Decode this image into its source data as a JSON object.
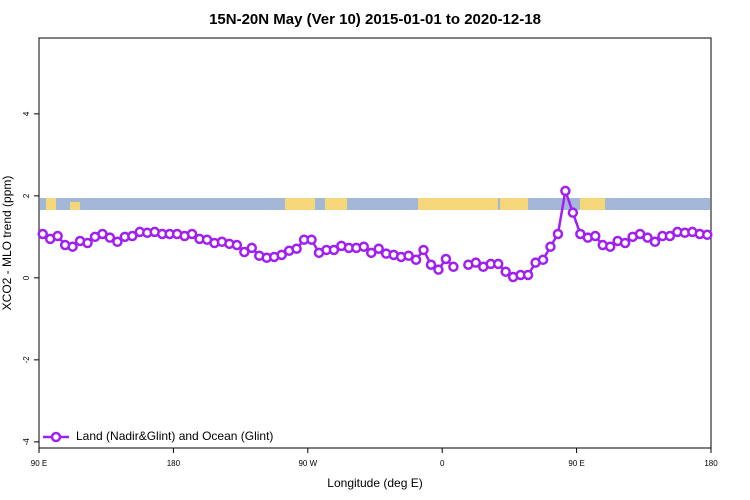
{
  "chart_data": {
    "type": "line",
    "title": "15N-20N May (Ver 10)   2015-01-01 to 2020-12-18",
    "xlabel": "Longitude (deg E)",
    "ylabel": "XCO2 - MLO trend (ppm)",
    "x": [
      92.5,
      97.5,
      102.5,
      107.5,
      112.5,
      117.5,
      122.5,
      127.5,
      132.5,
      137.5,
      142.5,
      147.5,
      152.5,
      157.5,
      162.5,
      167.5,
      172.5,
      177.5,
      182.5,
      187.5,
      192.5,
      197.5,
      202.5,
      207.5,
      212.5,
      217.5,
      222.5,
      227.5,
      232.5,
      237.5,
      242.5,
      247.5,
      252.5,
      257.5,
      262.5,
      267.5,
      272.5,
      277.5,
      282.5,
      287.5,
      292.5,
      297.5,
      302.5,
      307.5,
      312.5,
      317.5,
      322.5,
      327.5,
      332.5,
      337.5,
      342.5,
      347.5,
      352.5,
      357.5,
      362.5,
      367.5,
      372.5,
      377.5,
      382.5,
      387.5,
      392.5,
      397.5,
      402.5,
      407.5,
      412.5,
      417.5,
      422.5,
      427.5,
      432.5,
      437.5,
      442.5,
      447.5,
      452.5,
      457.5,
      462.5,
      467.5,
      472.5,
      477.5,
      482.5,
      487.5,
      492.5,
      497.5,
      502.5,
      507.5,
      512.5,
      517.5,
      522.5,
      527.5,
      532.5,
      537.5
    ],
    "series": [
      {
        "name": "Land (Nadir&Glint) and Ocean (Glint)",
        "color": "#a020f0",
        "values": [
          1.07,
          0.95,
          1.02,
          0.8,
          0.76,
          0.9,
          0.85,
          1.0,
          1.07,
          0.98,
          0.88,
          1.0,
          1.02,
          1.12,
          1.1,
          1.12,
          1.07,
          1.07,
          1.07,
          1.02,
          1.07,
          0.95,
          0.93,
          0.85,
          0.88,
          0.83,
          0.8,
          0.63,
          0.73,
          0.54,
          0.49,
          0.51,
          0.56,
          0.66,
          0.71,
          0.93,
          0.93,
          0.61,
          0.68,
          0.68,
          0.78,
          0.73,
          0.73,
          0.76,
          0.61,
          0.71,
          0.59,
          0.56,
          0.51,
          0.54,
          0.44,
          0.68,
          0.32,
          0.2,
          0.46,
          0.27,
          null,
          0.32,
          0.37,
          0.27,
          0.34,
          0.34,
          0.15,
          0.02,
          0.07,
          0.07,
          0.37,
          0.44,
          0.76,
          1.07,
          2.12,
          1.59,
          1.07,
          0.98,
          1.02,
          0.8,
          0.76,
          0.9,
          0.85,
          1.0,
          1.07,
          0.98,
          0.88,
          1.02,
          1.02,
          1.12,
          1.1,
          1.12,
          1.07,
          1.05
        ]
      }
    ],
    "xlim": [
      90,
      540
    ],
    "xticks": [
      {
        "value": 90,
        "label": "90 E"
      },
      180,
      {
        "value": 270,
        "label": "90 W"
      },
      {
        "value": 360,
        "label": "0"
      },
      {
        "value": 450,
        "label": "90 E"
      },
      {
        "value": 540,
        "label": "180"
      }
    ],
    "ylim": [
      -4.15,
      5.85
    ],
    "yticks": [
      -4,
      -2,
      0,
      2,
      4
    ],
    "legend": "bottom-left"
  }
}
